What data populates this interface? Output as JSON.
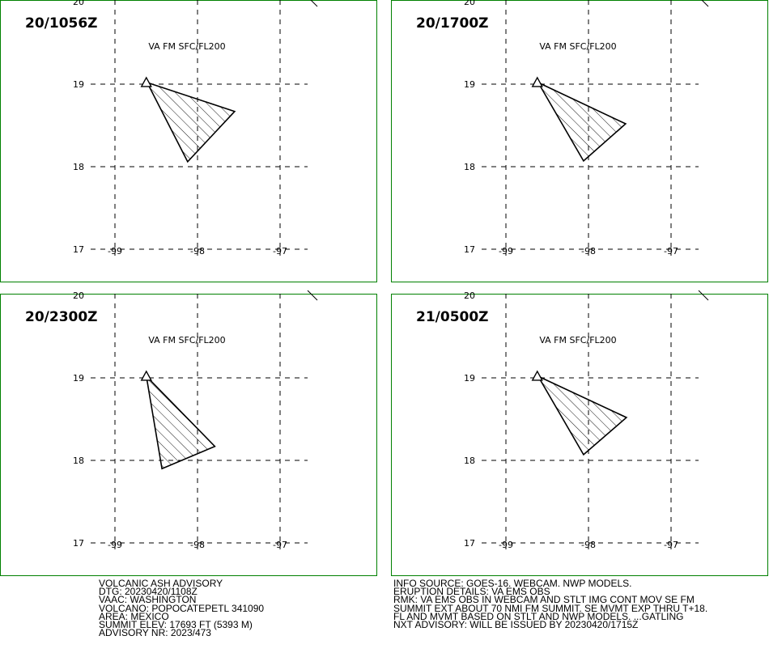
{
  "panels": [
    {
      "time": "20/1056Z",
      "level": "VA FM SFC/FL200",
      "polygon": [
        [
          -98.61,
          19.02
        ],
        [
          -97.55,
          18.67
        ],
        [
          -98.12,
          18.06
        ],
        [
          -98.61,
          19.02
        ]
      ]
    },
    {
      "time": "20/1700Z",
      "level": "VA FM SFC/FL200",
      "polygon": [
        [
          -98.61,
          19.02
        ],
        [
          -97.55,
          18.52
        ],
        [
          -98.06,
          18.07
        ],
        [
          -98.61,
          19.02
        ]
      ]
    },
    {
      "time": "20/2300Z",
      "level": "VA FM SFC/FL200",
      "polygon": [
        [
          -98.62,
          19.02
        ],
        [
          -97.79,
          18.17
        ],
        [
          -98.43,
          17.9
        ],
        [
          -98.62,
          19.02
        ]
      ]
    },
    {
      "time": "21/0500Z",
      "level": "VA FM SFC/FL200",
      "polygon": [
        [
          -98.61,
          19.02
        ],
        [
          -97.54,
          18.52
        ],
        [
          -98.06,
          18.07
        ],
        [
          -98.61,
          19.02
        ]
      ]
    }
  ],
  "volcano": {
    "lon": -98.62,
    "lat": 19.02,
    "symbol": "volcano-triangle-icon"
  },
  "grid": {
    "lon_ticks": [
      -99,
      -98,
      -97
    ],
    "lon_labels": [
      "-99",
      "-98",
      "-97"
    ],
    "lat_ticks": [
      20,
      19,
      18,
      17
    ],
    "lat_labels": [
      "20",
      "19",
      "18",
      "17"
    ]
  },
  "advisory_left": [
    "VOLCANIC ASH ADVISORY",
    "DTG: 20230420/1108Z",
    "VAAC: WASHINGTON",
    "VOLCANO: POPOCATEPETL 341090",
    "AREA: MEXICO",
    "SUMMIT ELEV: 17693 FT (5393 M)",
    "ADVISORY NR: 2023/473"
  ],
  "advisory_right": [
    "INFO SOURCE: GOES-16. WEBCAM. NWP MODELS.",
    "ERUPTION DETAILS: VA EMS OBS",
    "RMK: VA EMS OBS IN WEBCAM AND STLT IMG CONT MOV SE FM",
    "SUMMIT EXT ABOUT 70 NMI FM SUMMIT. SE MVMT EXP THRU T+18.",
    "FL AND MVMT BASED ON STLT AND NWP MODELS. ...GATLING"
  ],
  "advisory_right_last": "NXT ADVISORY: WILL BE ISSUED BY 20230420/1715Z",
  "colors": {
    "frame": "#008000",
    "ink": "#000000",
    "background": "#ffffff"
  }
}
